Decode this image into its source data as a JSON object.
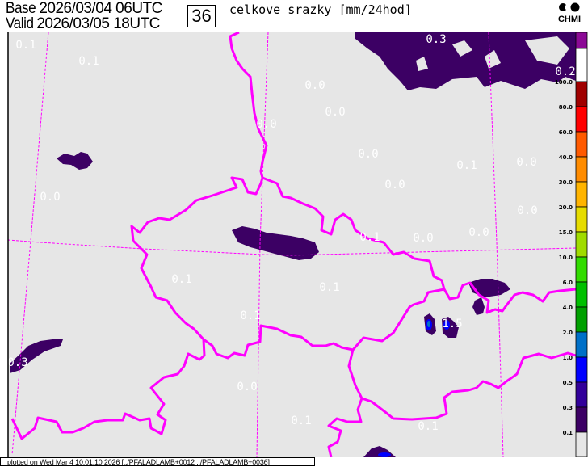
{
  "header": {
    "base_label": "Base",
    "base_time": "2026/03/04 06UTC",
    "valid_label": "Valid",
    "valid_time": "2026/03/05 18UTC",
    "lead_hours": "36",
    "title": "celkove srazky [mm/24hod]",
    "logo_text": "CHMI"
  },
  "map": {
    "background": "#e6e6e6",
    "border_color": "#ff00ff",
    "precip_color": "#3c0064",
    "value_labels": [
      "0.1",
      "0.1",
      "0.0",
      "0.0",
      "0.0",
      "0.3",
      "0.2",
      "0.0",
      "0.0",
      "0.1",
      "0.0",
      "0.0",
      "0.0",
      "0.0",
      "0.1",
      "0.0",
      "0.1",
      "0.1",
      "0.0",
      "0.3",
      "0.1",
      "1.5",
      "0.1",
      "0.1"
    ]
  },
  "legend": {
    "labels": [
      "100.0",
      "80.0",
      "60.0",
      "40.0",
      "30.0",
      "20.0",
      "15.0",
      "10.0",
      "6.0",
      "4.0",
      "2.0",
      "1.0",
      "0.5",
      "0.3",
      "0.1"
    ],
    "colors": [
      "#8c0a96",
      "#ffffff",
      "#a00000",
      "#ff0000",
      "#ff5a00",
      "#ff8c00",
      "#ffb400",
      "#e6dc00",
      "#a0dc00",
      "#32dc00",
      "#00c000",
      "#00a000",
      "#0070c8",
      "#0000ff",
      "#32009a",
      "#3c0064",
      "#e6e6e6"
    ]
  },
  "footer": {
    "text": "plotted on Wed Mar  4 10:01:10 2026 [../PFALADLAMB+0012 ../PFALADLAMB+0036]"
  }
}
